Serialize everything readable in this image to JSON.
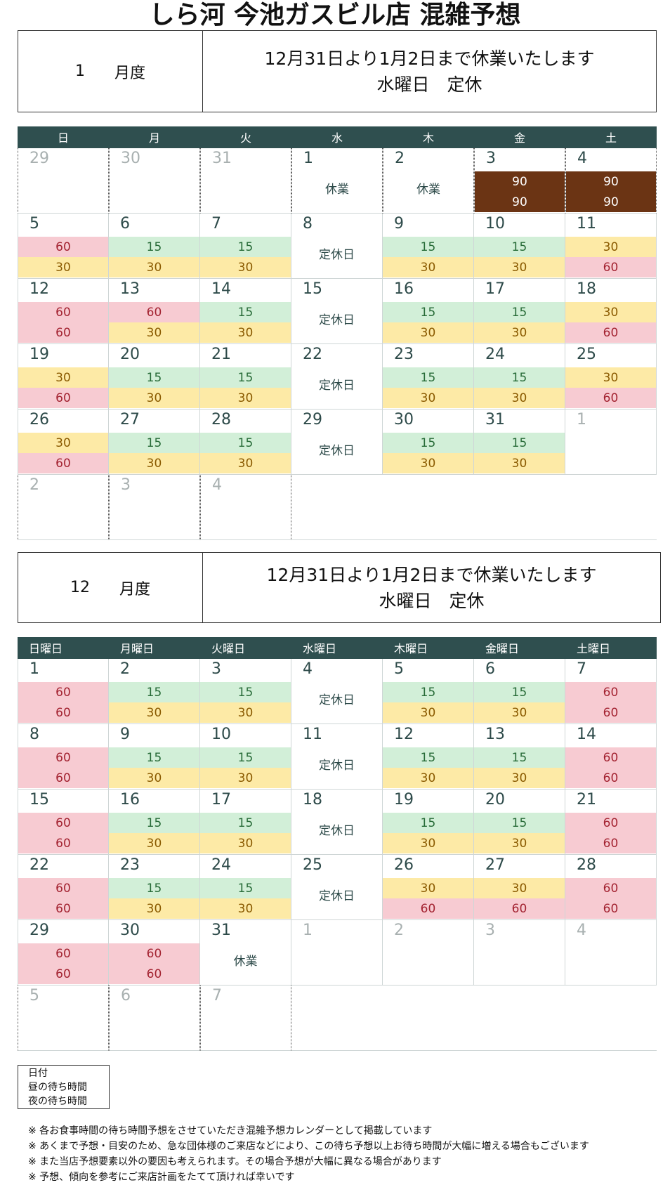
{
  "title": "しら河 今池ガスビル店 混雑予想",
  "blocks": [
    {
      "month_number": "1",
      "month_suffix": "月度",
      "notice_line1": "12月31日より1月2日まで休業いたします",
      "notice_line2": "水曜日　定休",
      "weekdays": [
        "日",
        "月",
        "火",
        "水",
        "木",
        "金",
        "土"
      ],
      "weeks": [
        [
          {
            "day": "29",
            "other": true
          },
          {
            "day": "30",
            "other": true
          },
          {
            "day": "31",
            "other": true
          },
          {
            "day": "1",
            "text": "休業"
          },
          {
            "day": "2",
            "text": "休業"
          },
          {
            "day": "3",
            "slots": [
              [
                "90",
                "b"
              ],
              [
                "90",
                "b"
              ]
            ]
          },
          {
            "day": "4",
            "slots": [
              [
                "90",
                "b"
              ],
              [
                "90",
                "b"
              ]
            ]
          }
        ],
        [
          {
            "day": "5",
            "slots": [
              [
                "60",
                "p"
              ],
              [
                "30",
                "y"
              ]
            ]
          },
          {
            "day": "6",
            "slots": [
              [
                "15",
                "g"
              ],
              [
                "30",
                "y"
              ]
            ]
          },
          {
            "day": "7",
            "slots": [
              [
                "15",
                "g"
              ],
              [
                "30",
                "y"
              ]
            ]
          },
          {
            "day": "8",
            "text": "定休日"
          },
          {
            "day": "9",
            "slots": [
              [
                "15",
                "g"
              ],
              [
                "30",
                "y"
              ]
            ]
          },
          {
            "day": "10",
            "slots": [
              [
                "15",
                "g"
              ],
              [
                "30",
                "y"
              ]
            ]
          },
          {
            "day": "11",
            "slots": [
              [
                "30",
                "y"
              ],
              [
                "60",
                "p"
              ]
            ]
          }
        ],
        [
          {
            "day": "12",
            "slots": [
              [
                "60",
                "p"
              ],
              [
                "60",
                "p"
              ]
            ]
          },
          {
            "day": "13",
            "slots": [
              [
                "60",
                "p"
              ],
              [
                "30",
                "y"
              ]
            ]
          },
          {
            "day": "14",
            "slots": [
              [
                "15",
                "g"
              ],
              [
                "30",
                "y"
              ]
            ]
          },
          {
            "day": "15",
            "text": "定休日"
          },
          {
            "day": "16",
            "slots": [
              [
                "15",
                "g"
              ],
              [
                "30",
                "y"
              ]
            ]
          },
          {
            "day": "17",
            "slots": [
              [
                "15",
                "g"
              ],
              [
                "30",
                "y"
              ]
            ]
          },
          {
            "day": "18",
            "slots": [
              [
                "30",
                "y"
              ],
              [
                "60",
                "p"
              ]
            ]
          }
        ],
        [
          {
            "day": "19",
            "slots": [
              [
                "30",
                "y"
              ],
              [
                "60",
                "p"
              ]
            ]
          },
          {
            "day": "20",
            "slots": [
              [
                "15",
                "g"
              ],
              [
                "30",
                "y"
              ]
            ]
          },
          {
            "day": "21",
            "slots": [
              [
                "15",
                "g"
              ],
              [
                "30",
                "y"
              ]
            ]
          },
          {
            "day": "22",
            "text": "定休日"
          },
          {
            "day": "23",
            "slots": [
              [
                "15",
                "g"
              ],
              [
                "30",
                "y"
              ]
            ]
          },
          {
            "day": "24",
            "slots": [
              [
                "15",
                "g"
              ],
              [
                "30",
                "y"
              ]
            ]
          },
          {
            "day": "25",
            "slots": [
              [
                "30",
                "y"
              ],
              [
                "60",
                "p"
              ]
            ]
          }
        ],
        [
          {
            "day": "26",
            "slots": [
              [
                "30",
                "y"
              ],
              [
                "60",
                "p"
              ]
            ]
          },
          {
            "day": "27",
            "slots": [
              [
                "15",
                "g"
              ],
              [
                "30",
                "y"
              ]
            ]
          },
          {
            "day": "28",
            "slots": [
              [
                "15",
                "g"
              ],
              [
                "30",
                "y"
              ]
            ]
          },
          {
            "day": "29",
            "text": "定休日"
          },
          {
            "day": "30",
            "slots": [
              [
                "15",
                "g"
              ],
              [
                "30",
                "y"
              ]
            ]
          },
          {
            "day": "31",
            "slots": [
              [
                "15",
                "g"
              ],
              [
                "30",
                "y"
              ]
            ]
          },
          {
            "day": "1",
            "other": true
          }
        ],
        [
          {
            "day": "2",
            "other": true
          },
          {
            "day": "3",
            "other": true
          },
          {
            "day": "4",
            "other": true
          }
        ]
      ]
    },
    {
      "month_number": "12",
      "month_suffix": "月度",
      "notice_line1": "12月31日より1月2日まで休業いたします",
      "notice_line2": "水曜日　定休",
      "weekdays": [
        "日曜日",
        "月曜日",
        "火曜日",
        "水曜日",
        "木曜日",
        "金曜日",
        "土曜日"
      ],
      "weeks": [
        [
          {
            "day": "1",
            "slots": [
              [
                "60",
                "p"
              ],
              [
                "60",
                "p"
              ]
            ]
          },
          {
            "day": "2",
            "slots": [
              [
                "15",
                "g"
              ],
              [
                "30",
                "y"
              ]
            ]
          },
          {
            "day": "3",
            "slots": [
              [
                "15",
                "g"
              ],
              [
                "30",
                "y"
              ]
            ]
          },
          {
            "day": "4",
            "text": "定休日"
          },
          {
            "day": "5",
            "slots": [
              [
                "15",
                "g"
              ],
              [
                "30",
                "y"
              ]
            ]
          },
          {
            "day": "6",
            "slots": [
              [
                "15",
                "g"
              ],
              [
                "30",
                "y"
              ]
            ]
          },
          {
            "day": "7",
            "slots": [
              [
                "60",
                "p"
              ],
              [
                "60",
                "p"
              ]
            ]
          }
        ],
        [
          {
            "day": "8",
            "slots": [
              [
                "60",
                "p"
              ],
              [
                "60",
                "p"
              ]
            ]
          },
          {
            "day": "9",
            "slots": [
              [
                "15",
                "g"
              ],
              [
                "30",
                "y"
              ]
            ]
          },
          {
            "day": "10",
            "slots": [
              [
                "15",
                "g"
              ],
              [
                "30",
                "y"
              ]
            ]
          },
          {
            "day": "11",
            "text": "定休日"
          },
          {
            "day": "12",
            "slots": [
              [
                "15",
                "g"
              ],
              [
                "30",
                "y"
              ]
            ]
          },
          {
            "day": "13",
            "slots": [
              [
                "15",
                "g"
              ],
              [
                "30",
                "y"
              ]
            ]
          },
          {
            "day": "14",
            "slots": [
              [
                "60",
                "p"
              ],
              [
                "60",
                "p"
              ]
            ]
          }
        ],
        [
          {
            "day": "15",
            "slots": [
              [
                "60",
                "p"
              ],
              [
                "60",
                "p"
              ]
            ]
          },
          {
            "day": "16",
            "slots": [
              [
                "15",
                "g"
              ],
              [
                "30",
                "y"
              ]
            ]
          },
          {
            "day": "17",
            "slots": [
              [
                "15",
                "g"
              ],
              [
                "30",
                "y"
              ]
            ]
          },
          {
            "day": "18",
            "text": "定休日"
          },
          {
            "day": "19",
            "slots": [
              [
                "15",
                "g"
              ],
              [
                "30",
                "y"
              ]
            ]
          },
          {
            "day": "20",
            "slots": [
              [
                "15",
                "g"
              ],
              [
                "30",
                "y"
              ]
            ]
          },
          {
            "day": "21",
            "slots": [
              [
                "60",
                "p"
              ],
              [
                "60",
                "p"
              ]
            ]
          }
        ],
        [
          {
            "day": "22",
            "slots": [
              [
                "60",
                "p"
              ],
              [
                "60",
                "p"
              ]
            ]
          },
          {
            "day": "23",
            "slots": [
              [
                "15",
                "g"
              ],
              [
                "30",
                "y"
              ]
            ]
          },
          {
            "day": "24",
            "slots": [
              [
                "15",
                "g"
              ],
              [
                "30",
                "y"
              ]
            ]
          },
          {
            "day": "25",
            "text": "定休日"
          },
          {
            "day": "26",
            "slots": [
              [
                "30",
                "y"
              ],
              [
                "60",
                "p"
              ]
            ]
          },
          {
            "day": "27",
            "slots": [
              [
                "30",
                "y"
              ],
              [
                "60",
                "p"
              ]
            ]
          },
          {
            "day": "28",
            "slots": [
              [
                "60",
                "p"
              ],
              [
                "60",
                "p"
              ]
            ]
          }
        ],
        [
          {
            "day": "29",
            "slots": [
              [
                "60",
                "p"
              ],
              [
                "60",
                "p"
              ]
            ]
          },
          {
            "day": "30",
            "slots": [
              [
                "60",
                "p"
              ],
              [
                "60",
                "p"
              ]
            ]
          },
          {
            "day": "31",
            "text": "休業"
          },
          {
            "day": "1",
            "other": true
          },
          {
            "day": "2",
            "other": true
          },
          {
            "day": "3",
            "other": true
          },
          {
            "day": "4",
            "other": true
          }
        ],
        [
          {
            "day": "5",
            "other": true
          },
          {
            "day": "6",
            "other": true
          },
          {
            "day": "7",
            "other": true
          }
        ]
      ]
    }
  ],
  "legend": [
    "日付",
    "昼の待ち時間",
    "夜の待ち時間"
  ],
  "notes": [
    "※ 各お食事時間の待ち時間予想をさせていただき混雑予想カレンダーとして掲載しています",
    "※ あくまで予想・目安のため、急な団体様のご来店などにより、この待ち予想以上お待ち時間が大幅に増える場合もございます",
    "※ また当店予想要素以外の要因も考えられます。その場合予想が大幅に異なる場合があります",
    "※ 予想、傾向を参考にご来店計画をたてて頂ければ幸いです"
  ],
  "colors": {
    "header": "#2f4f4f",
    "low": "#d2efd8",
    "mid": "#fdeaa6",
    "high": "#f7cbd2",
    "peak": "#6b3414"
  }
}
